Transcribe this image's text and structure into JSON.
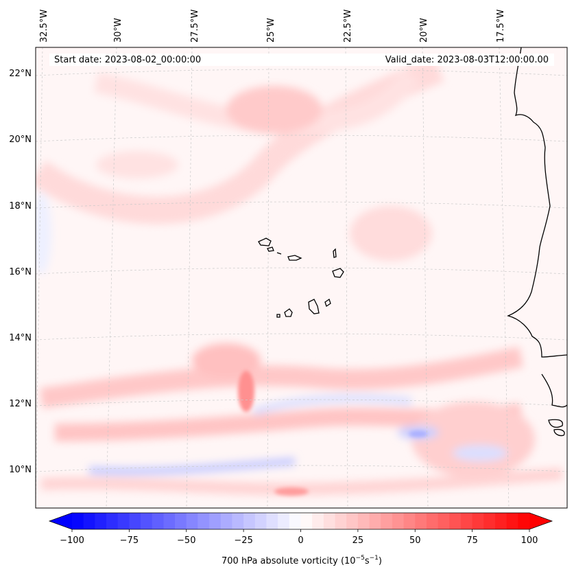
{
  "map": {
    "start_date": "Start date: 2023-08-02_00:00:00",
    "valid_date": "Valid_date: 2023-08-03T12:00:00.00",
    "lon_labels": [
      "32.5°W",
      "30°W",
      "27.5°W",
      "25°W",
      "22.5°W",
      "20°W",
      "17.5°W"
    ],
    "lat_labels": [
      "22°N",
      "20°N",
      "18°N",
      "16°N",
      "14°N",
      "12°N",
      "10°N"
    ],
    "field": "700 hPa absolute vorticity",
    "grid": true,
    "colormap": "bwr"
  },
  "colorbar": {
    "ticks": [
      "−100",
      "−75",
      "−50",
      "−25",
      "0",
      "25",
      "50",
      "75",
      "100"
    ],
    "range": [
      -100,
      100
    ],
    "label_prefix": "700 hPa absolute vorticity (10",
    "label_exp1": "−5",
    "label_mid": "s",
    "label_exp2": "−1",
    "label_suffix": ")",
    "color_min": "#0000ff",
    "color_mid": "#ffffff",
    "color_max": "#ff0000"
  }
}
